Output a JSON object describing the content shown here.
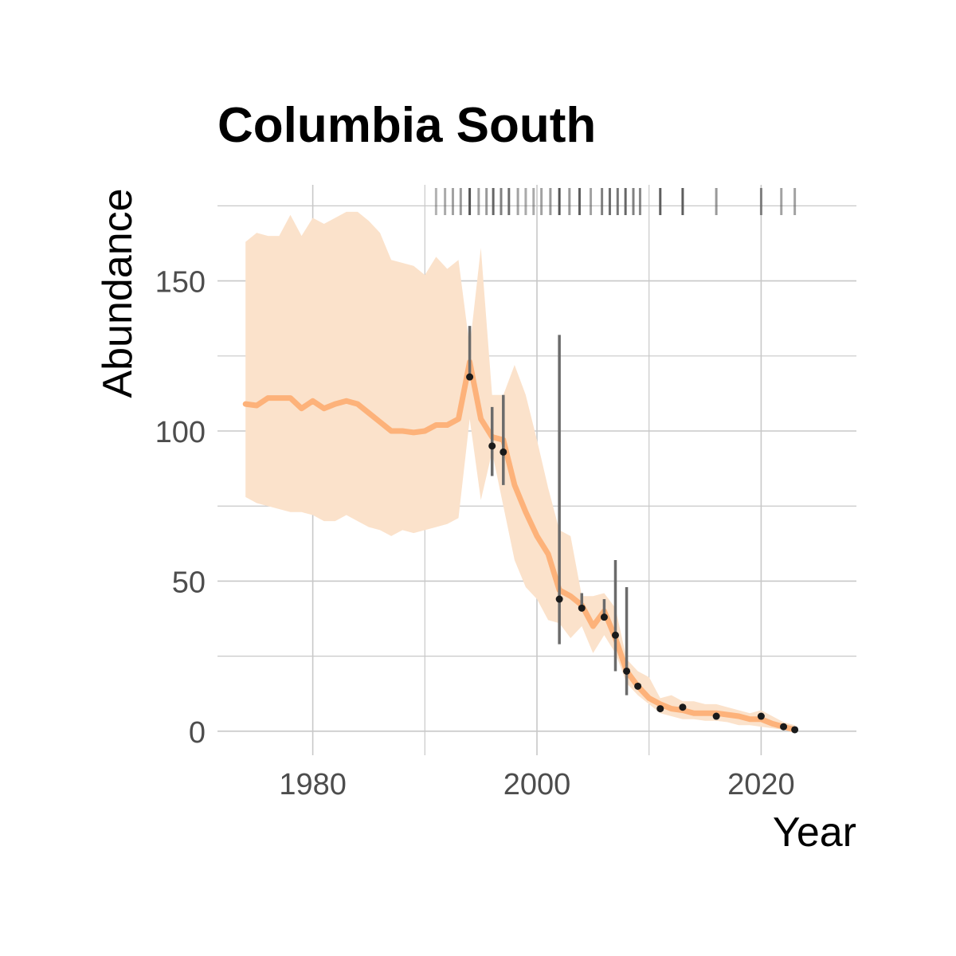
{
  "chart_data": {
    "type": "line",
    "title": "Columbia South",
    "xlabel": "Year",
    "ylabel": "Abundance",
    "xlim": [
      1971.5,
      2028.5
    ],
    "ylim": [
      -8,
      182
    ],
    "x_ticks": [
      1980,
      2000,
      2020
    ],
    "x_minor_ticks": [
      1990,
      2010
    ],
    "y_ticks": [
      0,
      50,
      100,
      150
    ],
    "y_minor_ticks": [
      25,
      75,
      125,
      175
    ],
    "grid": true,
    "colors": {
      "line": "#fdb27a",
      "ribbon": "#fbe2cb",
      "points": "#1a1a1a",
      "error_bars": "#6b6b6b",
      "rug": "#555555"
    },
    "series": [
      {
        "kind": "estimate",
        "x": [
          1974,
          1975,
          1976,
          1977,
          1978,
          1979,
          1980,
          1981,
          1982,
          1983,
          1984,
          1985,
          1986,
          1987,
          1988,
          1989,
          1990,
          1991,
          1992,
          1993,
          1994,
          1995,
          1996,
          1997,
          1998,
          1999,
          2000,
          2001,
          2002,
          2003,
          2004,
          2005,
          2006,
          2007,
          2008,
          2009,
          2010,
          2011,
          2012,
          2013,
          2014,
          2015,
          2016,
          2017,
          2018,
          2019,
          2020,
          2021,
          2022,
          2023
        ],
        "y": [
          109,
          108.5,
          111,
          111,
          111,
          107.5,
          110,
          107.5,
          109,
          110,
          109,
          106,
          103,
          100,
          100,
          99.5,
          100,
          102,
          102,
          104,
          123,
          104,
          98,
          97,
          82,
          73,
          65,
          59,
          47,
          45,
          42,
          35,
          40,
          31,
          20,
          15,
          11,
          9,
          7.5,
          7,
          6,
          6,
          6,
          5.5,
          5,
          4,
          4,
          2.5,
          1.5,
          0.5
        ],
        "lower": [
          78,
          76,
          75,
          74,
          73,
          73,
          72,
          70,
          70,
          72,
          70,
          68,
          67,
          65,
          67,
          66,
          67,
          68,
          69,
          71,
          104,
          77,
          93,
          75,
          57,
          48,
          44,
          37,
          36,
          31,
          35,
          26,
          32,
          26,
          16,
          12,
          9,
          6,
          5,
          4,
          4,
          3.5,
          3.5,
          3,
          2,
          2,
          1.5,
          1,
          0.5,
          0
        ],
        "upper": [
          163,
          166,
          165,
          165,
          172,
          165,
          171,
          169,
          171,
          173,
          173,
          170,
          166,
          157,
          156,
          155,
          152,
          158,
          154,
          157,
          128,
          161,
          112,
          112,
          122,
          112,
          97,
          81,
          67,
          65,
          45,
          45,
          46,
          41,
          24,
          20,
          18,
          11,
          12,
          10,
          10,
          9,
          9,
          8,
          7,
          6,
          7,
          5,
          3,
          2
        ]
      },
      {
        "kind": "observed",
        "x": [
          1994,
          1996,
          1997,
          2002,
          2004,
          2006,
          2007,
          2008,
          2009,
          2011,
          2013,
          2016,
          2020,
          2022,
          2023
        ],
        "y": [
          118,
          95,
          93,
          44,
          41,
          38,
          32,
          20,
          15,
          7.5,
          8,
          5,
          5,
          1.5,
          0.5
        ],
        "err_low": [
          118,
          85,
          82,
          29,
          41,
          38,
          20,
          12,
          15,
          7.5,
          8,
          5,
          5,
          1.5,
          0.5
        ],
        "err_high": [
          135,
          108,
          112,
          132,
          46,
          44,
          57,
          48,
          15,
          7.5,
          8,
          5,
          5,
          1.5,
          0.5
        ]
      }
    ],
    "rug_years": [
      {
        "x": 1991,
        "w": 0.45
      },
      {
        "x": 1991.8,
        "w": 0.5
      },
      {
        "x": 1992.5,
        "w": 0.55
      },
      {
        "x": 1993.2,
        "w": 0.6
      },
      {
        "x": 1994,
        "w": 1
      },
      {
        "x": 1994.8,
        "w": 0.55
      },
      {
        "x": 1995.5,
        "w": 0.6
      },
      {
        "x": 1996.1,
        "w": 0.9
      },
      {
        "x": 1996.8,
        "w": 0.75
      },
      {
        "x": 1997.5,
        "w": 0.85
      },
      {
        "x": 1998.3,
        "w": 0.55
      },
      {
        "x": 1999,
        "w": 0.5
      },
      {
        "x": 1999.7,
        "w": 0.5
      },
      {
        "x": 2000.4,
        "w": 0.55
      },
      {
        "x": 2001.2,
        "w": 0.6
      },
      {
        "x": 2002,
        "w": 1
      },
      {
        "x": 2002.9,
        "w": 0.6
      },
      {
        "x": 2003.8,
        "w": 0.95
      },
      {
        "x": 2004.8,
        "w": 0.55
      },
      {
        "x": 2005.8,
        "w": 0.75
      },
      {
        "x": 2006.5,
        "w": 0.85
      },
      {
        "x": 2007.2,
        "w": 0.8
      },
      {
        "x": 2007.9,
        "w": 0.9
      },
      {
        "x": 2008.6,
        "w": 0.75
      },
      {
        "x": 2009.2,
        "w": 0.7
      },
      {
        "x": 2011,
        "w": 0.95
      },
      {
        "x": 2013,
        "w": 0.95
      },
      {
        "x": 2016,
        "w": 0.6
      },
      {
        "x": 2020,
        "w": 0.7
      },
      {
        "x": 2021.8,
        "w": 0.55
      },
      {
        "x": 2023,
        "w": 0.55
      }
    ]
  }
}
